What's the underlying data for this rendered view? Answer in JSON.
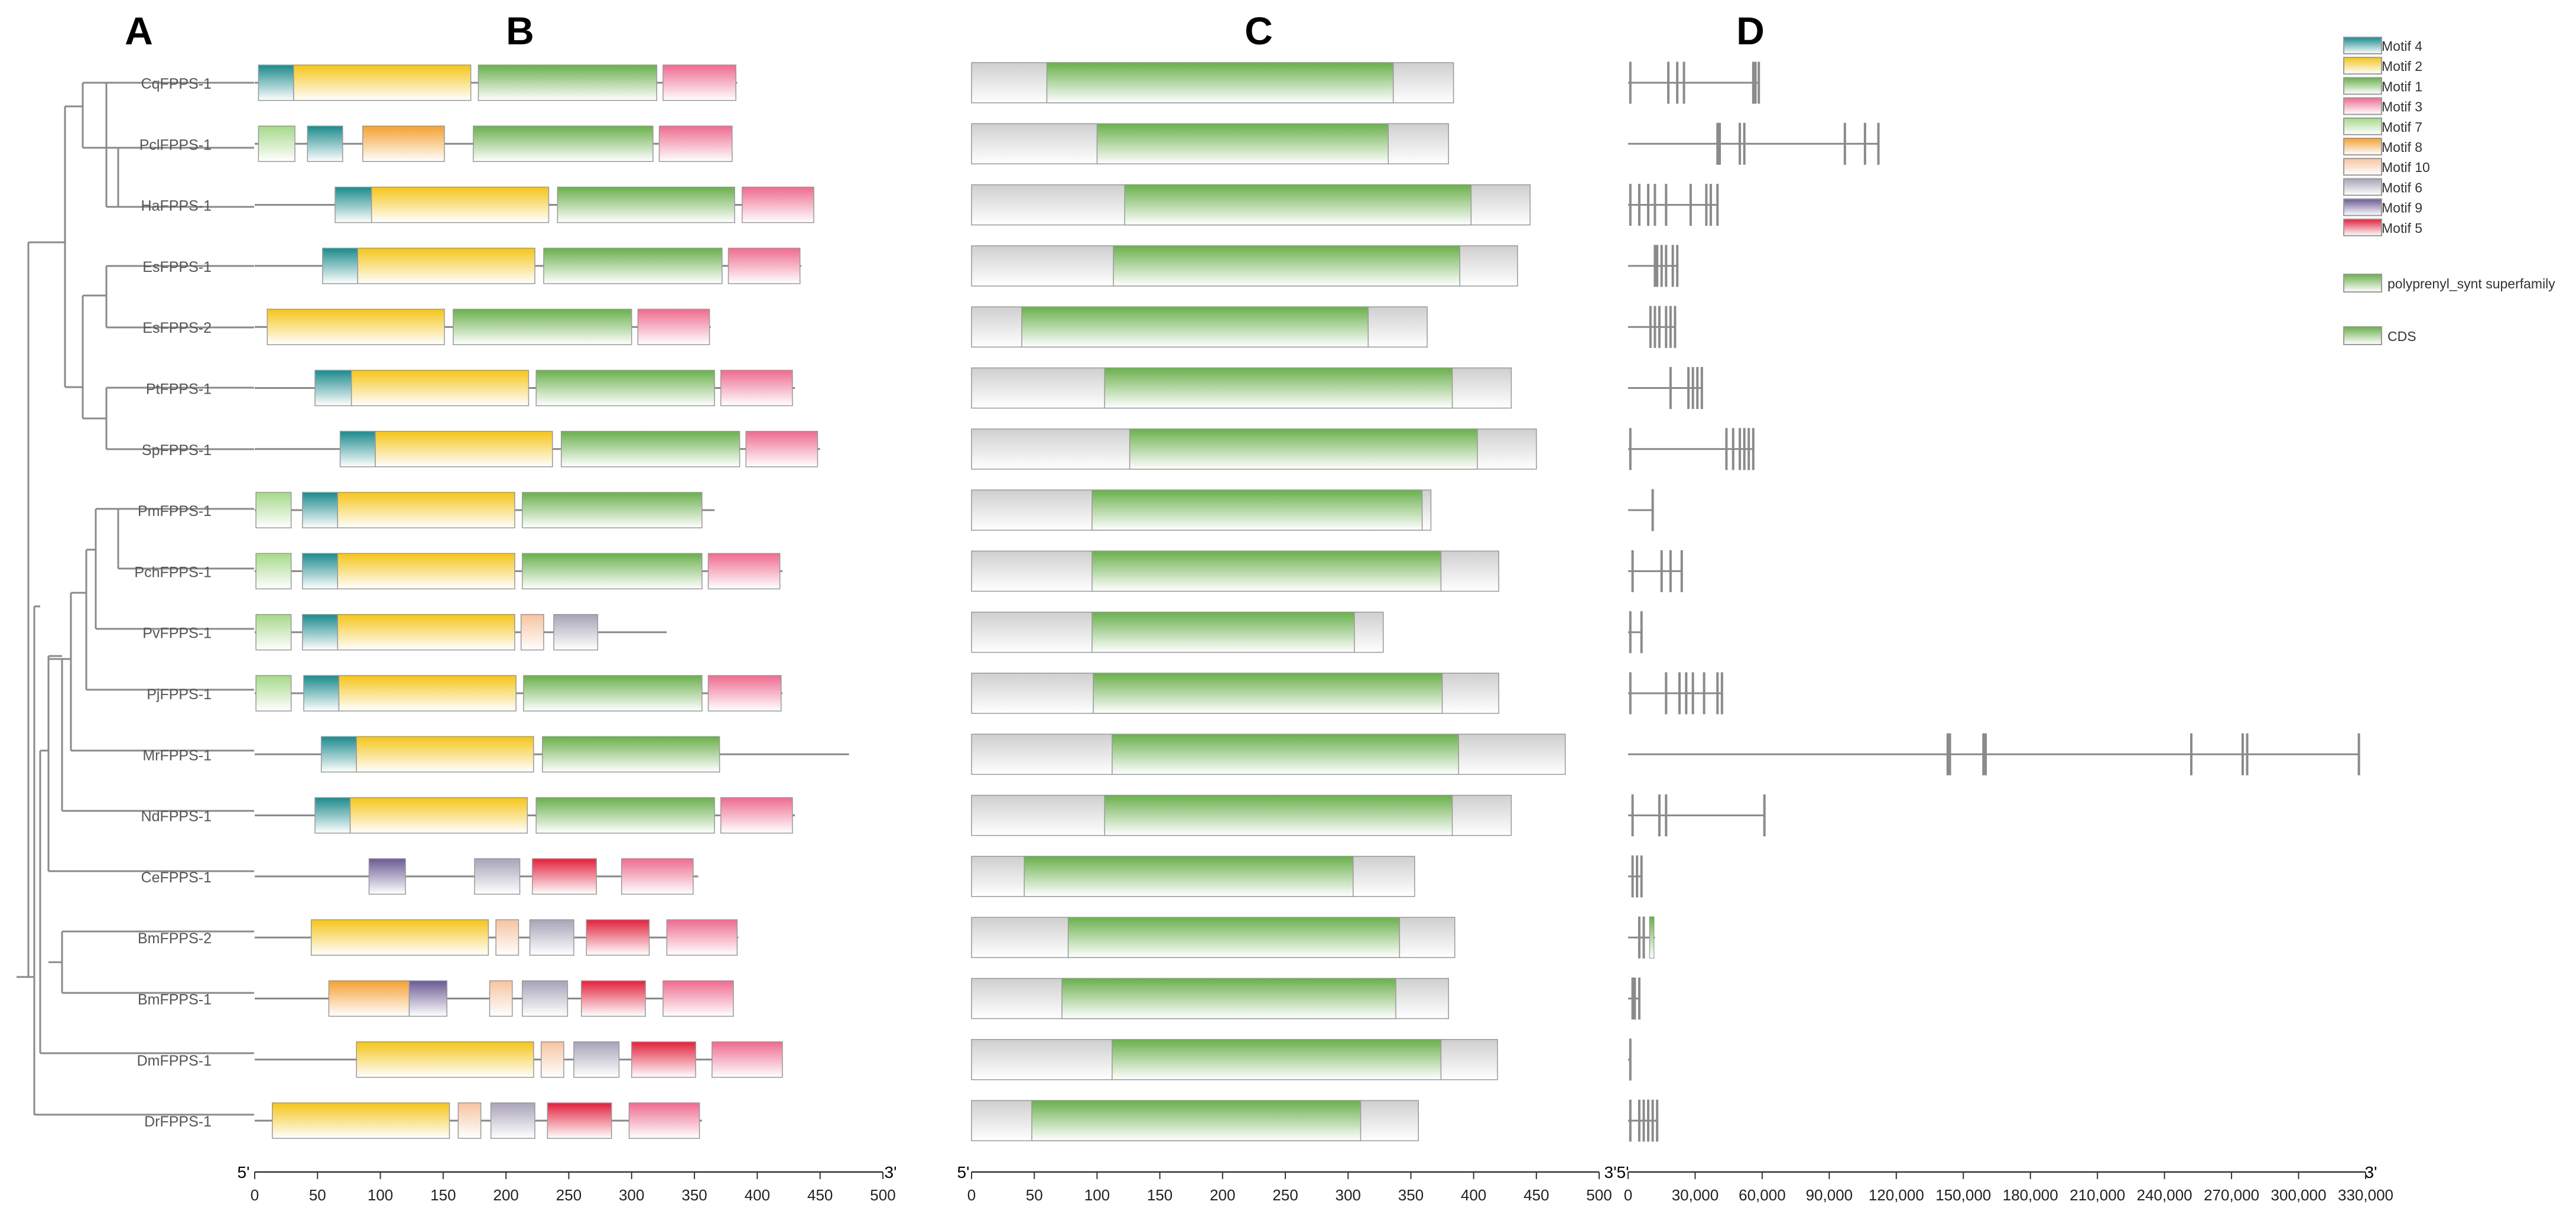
{
  "panels": {
    "A": "A",
    "B": "B",
    "C": "C",
    "D": "D"
  },
  "proteins": [
    {
      "name": "CqFPPS-1",
      "len": 384,
      "motifs": [
        [
          3,
          31,
          "m4"
        ],
        [
          31,
          172,
          "m2"
        ],
        [
          178,
          320,
          "m1"
        ],
        [
          325,
          383,
          "m3"
        ]
      ],
      "dom": [
        60,
        336
      ],
      "genes": [
        [
          0,
          58500
        ],
        [
          1000,
          1000
        ],
        [
          18000,
          18000
        ],
        [
          22000,
          22000
        ],
        [
          25000,
          25000
        ],
        [
          56000,
          56000
        ],
        [
          57000,
          57000
        ],
        [
          58500,
          58500
        ]
      ]
    },
    {
      "name": "PclFPPS-1",
      "len": 380,
      "motifs": [
        [
          3,
          32,
          "m7"
        ],
        [
          42,
          70,
          "m4"
        ],
        [
          86,
          151,
          "m8"
        ],
        [
          174,
          317,
          "m1"
        ],
        [
          322,
          380,
          "m3"
        ]
      ],
      "dom": [
        100,
        332
      ],
      "genes": [
        [
          0,
          112000
        ],
        [
          40000,
          40000
        ],
        [
          41000,
          41000
        ],
        [
          50000,
          50000
        ],
        [
          52000,
          52000
        ],
        [
          97000,
          97000
        ],
        [
          106000,
          106000
        ],
        [
          112000,
          112000
        ]
      ]
    },
    {
      "name": "HaFPPS-1",
      "len": 445,
      "motifs": [
        [
          64,
          93,
          "m4"
        ],
        [
          93,
          234,
          "m2"
        ],
        [
          241,
          382,
          "m1"
        ],
        [
          388,
          445,
          "m3"
        ]
      ],
      "dom": [
        122,
        398
      ],
      "genes": [
        [
          0,
          40000
        ],
        [
          1000,
          1000
        ],
        [
          5000,
          5000
        ],
        [
          9000,
          9000
        ],
        [
          12000,
          12000
        ],
        [
          17000,
          17000
        ],
        [
          28000,
          28000
        ],
        [
          35000,
          35000
        ],
        [
          37000,
          37000
        ],
        [
          40000,
          40000
        ]
      ]
    },
    {
      "name": "EsFPPS-1",
      "len": 435,
      "motifs": [
        [
          54,
          82,
          "m4"
        ],
        [
          82,
          223,
          "m2"
        ],
        [
          230,
          372,
          "m1"
        ],
        [
          377,
          434,
          "m3"
        ]
      ],
      "dom": [
        113,
        389
      ],
      "genes": [
        [
          0,
          22000
        ],
        [
          12000,
          12000
        ],
        [
          13000,
          13000
        ],
        [
          15000,
          15000
        ],
        [
          17000,
          17000
        ],
        [
          20000,
          20000
        ],
        [
          22000,
          22000
        ]
      ]
    },
    {
      "name": "EsFPPS-2",
      "len": 363,
      "motifs": [
        [
          10,
          151,
          "m2"
        ],
        [
          158,
          300,
          "m1"
        ],
        [
          305,
          362,
          "m3"
        ]
      ],
      "dom": [
        40,
        316
      ],
      "genes": [
        [
          0,
          21000
        ],
        [
          10000,
          10000
        ],
        [
          12000,
          12000
        ],
        [
          14000,
          14000
        ],
        [
          17000,
          17000
        ],
        [
          19000,
          19000
        ],
        [
          21000,
          21000
        ]
      ]
    },
    {
      "name": "PtFPPS-1",
      "len": 430,
      "motifs": [
        [
          48,
          77,
          "m4"
        ],
        [
          77,
          218,
          "m2"
        ],
        [
          224,
          366,
          "m1"
        ],
        [
          371,
          428,
          "m3"
        ]
      ],
      "dom": [
        106,
        383
      ],
      "genes": [
        [
          0,
          33000
        ],
        [
          19000,
          19000
        ],
        [
          27000,
          27000
        ],
        [
          29000,
          29000
        ],
        [
          31000,
          31000
        ],
        [
          33000,
          33000
        ]
      ]
    },
    {
      "name": "SpFPPS-1",
      "len": 450,
      "motifs": [
        [
          68,
          96,
          "m4"
        ],
        [
          96,
          237,
          "m2"
        ],
        [
          244,
          386,
          "m1"
        ],
        [
          391,
          448,
          "m3"
        ]
      ],
      "dom": [
        126,
        403
      ],
      "genes": [
        [
          0,
          56000
        ],
        [
          1000,
          1000
        ],
        [
          44000,
          44000
        ],
        [
          47000,
          47000
        ],
        [
          50000,
          50000
        ],
        [
          52000,
          52000
        ],
        [
          54000,
          54000
        ],
        [
          56000,
          56000
        ]
      ]
    },
    {
      "name": "PmFPPS-1",
      "len": 366,
      "motifs": [
        [
          1,
          29,
          "m7"
        ],
        [
          38,
          66,
          "m4"
        ],
        [
          66,
          207,
          "m2"
        ],
        [
          213,
          356,
          "m1"
        ]
      ],
      "dom": [
        96,
        359
      ],
      "genes": [
        [
          0,
          11000
        ],
        [
          11000,
          11000
        ]
      ]
    },
    {
      "name": "PchFPPS-1",
      "len": 420,
      "motifs": [
        [
          1,
          29,
          "m7"
        ],
        [
          38,
          66,
          "m4"
        ],
        [
          66,
          207,
          "m2"
        ],
        [
          213,
          356,
          "m1"
        ],
        [
          361,
          418,
          "m3"
        ]
      ],
      "dom": [
        96,
        374
      ],
      "genes": [
        [
          0,
          24000
        ],
        [
          2000,
          2000
        ],
        [
          15000,
          15000
        ],
        [
          19000,
          19000
        ],
        [
          24000,
          24000
        ]
      ]
    },
    {
      "name": "PvFPPS-1",
      "len": 328,
      "motifs": [
        [
          1,
          29,
          "m7"
        ],
        [
          38,
          66,
          "m4"
        ],
        [
          66,
          207,
          "m2"
        ],
        [
          212,
          230,
          "m10"
        ],
        [
          238,
          273,
          "m6"
        ]
      ],
      "dom": [
        96,
        305
      ],
      "genes": [
        [
          0,
          6000
        ],
        [
          1000,
          1000
        ],
        [
          6000,
          6000
        ]
      ]
    },
    {
      "name": "PjFPPS-1",
      "len": 420,
      "motifs": [
        [
          1,
          29,
          "m7"
        ],
        [
          39,
          67,
          "m4"
        ],
        [
          67,
          208,
          "m2"
        ],
        [
          214,
          356,
          "m1"
        ],
        [
          361,
          419,
          "m3"
        ]
      ],
      "dom": [
        97,
        375
      ],
      "genes": [
        [
          0,
          42000
        ],
        [
          1000,
          1000
        ],
        [
          17000,
          17000
        ],
        [
          23000,
          23000
        ],
        [
          26000,
          26000
        ],
        [
          29000,
          29000
        ],
        [
          34000,
          34000
        ],
        [
          40000,
          40000
        ],
        [
          42000,
          42000
        ]
      ]
    },
    {
      "name": "MrFPPS-1",
      "len": 473,
      "motifs": [
        [
          53,
          81,
          "m4"
        ],
        [
          81,
          222,
          "m2"
        ],
        [
          229,
          370,
          "m1"
        ]
      ],
      "dom": [
        112,
        388
      ],
      "genes": [
        [
          0,
          327000
        ],
        [
          143000,
          143000
        ],
        [
          144000,
          144000
        ],
        [
          159000,
          159000
        ],
        [
          160000,
          160000
        ],
        [
          252000,
          252000
        ],
        [
          275000,
          275000
        ],
        [
          277000,
          277000
        ],
        [
          327000,
          327000
        ]
      ]
    },
    {
      "name": "NdFPPS-1",
      "len": 430,
      "motifs": [
        [
          48,
          76,
          "m4"
        ],
        [
          76,
          217,
          "m2"
        ],
        [
          224,
          366,
          "m1"
        ],
        [
          371,
          428,
          "m3"
        ]
      ],
      "dom": [
        106,
        383
      ],
      "genes": [
        [
          0,
          61000
        ],
        [
          2000,
          2000
        ],
        [
          14000,
          14000
        ],
        [
          17000,
          17000
        ],
        [
          61000,
          61000
        ]
      ]
    },
    {
      "name": "CeFPPS-1",
      "len": 353,
      "motifs": [
        [
          91,
          120,
          "m9"
        ],
        [
          175,
          211,
          "m6"
        ],
        [
          221,
          272,
          "m5"
        ],
        [
          292,
          349,
          "m3"
        ]
      ],
      "dom": [
        42,
        304
      ],
      "genes": [
        [
          0,
          6000
        ],
        [
          2000,
          2000
        ],
        [
          4000,
          4000
        ],
        [
          6000,
          6000
        ]
      ]
    },
    {
      "name": "BmFPPS-2",
      "len": 385,
      "motifs": [
        [
          45,
          186,
          "m2"
        ],
        [
          192,
          210,
          "m10"
        ],
        [
          219,
          254,
          "m6"
        ],
        [
          264,
          314,
          "m5"
        ],
        [
          328,
          384,
          "m3"
        ]
      ],
      "dom": [
        77,
        341
      ],
      "genes": [
        [
          0,
          12000
        ],
        [
          5000,
          5000
        ],
        [
          7000,
          7000
        ],
        [
          10000,
          12000
        ]
      ]
    },
    {
      "name": "BmFPPS-1",
      "len": 380,
      "motifs": [
        [
          59,
          123,
          "m8"
        ],
        [
          123,
          153,
          "m9"
        ],
        [
          187,
          205,
          "m10"
        ],
        [
          213,
          249,
          "m6"
        ],
        [
          260,
          311,
          "m5"
        ],
        [
          325,
          381,
          "m3"
        ]
      ],
      "dom": [
        72,
        338
      ],
      "genes": [
        [
          0,
          5000
        ],
        [
          2000,
          2000
        ],
        [
          3000,
          3000
        ],
        [
          5000,
          5000
        ]
      ]
    },
    {
      "name": "DmFPPS-1",
      "len": 419,
      "motifs": [
        [
          81,
          222,
          "m2"
        ],
        [
          228,
          246,
          "m10"
        ],
        [
          254,
          290,
          "m6"
        ],
        [
          300,
          351,
          "m5"
        ],
        [
          364,
          420,
          "m3"
        ]
      ],
      "dom": [
        112,
        374
      ],
      "genes": [
        [
          0,
          1000
        ],
        [
          1000,
          1000
        ]
      ]
    },
    {
      "name": "DrFPPS-1",
      "len": 356,
      "motifs": [
        [
          14,
          155,
          "m2"
        ],
        [
          162,
          180,
          "m10"
        ],
        [
          188,
          223,
          "m6"
        ],
        [
          233,
          284,
          "m5"
        ],
        [
          298,
          354,
          "m3"
        ]
      ],
      "dom": [
        48,
        310
      ],
      "genes": [
        [
          0,
          13000
        ],
        [
          1000,
          1000
        ],
        [
          5000,
          5000
        ],
        [
          7000,
          7000
        ],
        [
          9000,
          9000
        ],
        [
          11000,
          11000
        ],
        [
          13000,
          13000
        ]
      ]
    }
  ],
  "legend_motifs": [
    {
      "key": "m4",
      "label": "Motif 4",
      "color": "#1b8a8c"
    },
    {
      "key": "m2",
      "label": "Motif 2",
      "color": "#f5c518"
    },
    {
      "key": "m1",
      "label": "Motif 1",
      "color": "#6ab04c"
    },
    {
      "key": "m3",
      "label": "Motif 3",
      "color": "#ef6b8f"
    },
    {
      "key": "m7",
      "label": "Motif 7",
      "color": "#a6d98a"
    },
    {
      "key": "m8",
      "label": "Motif 8",
      "color": "#f5a030"
    },
    {
      "key": "m10",
      "label": "Motif 10",
      "color": "#f7c4a0"
    },
    {
      "key": "m6",
      "label": "Motif 6",
      "color": "#a8a3b8"
    },
    {
      "key": "m9",
      "label": "Motif 9",
      "color": "#6a5a94"
    },
    {
      "key": "m5",
      "label": "Motif 5",
      "color": "#e3203c"
    }
  ],
  "legend_domain": {
    "label": "polyprenyl_synt superfamily",
    "color": "#6ab04c"
  },
  "legend_cds": {
    "label": "CDS",
    "color": "#6ab04c"
  },
  "axis_protein": {
    "start_label": "5'",
    "end_label": "3'",
    "ticks": [
      0,
      50,
      100,
      150,
      200,
      250,
      300,
      350,
      400,
      450,
      500
    ],
    "max": 500
  },
  "axis_gene": {
    "start_label": "5'",
    "end_label": "3'",
    "tick_labels": [
      "0",
      "30,000",
      "60,000",
      "90,000",
      "120,000",
      "150,000",
      "180,000",
      "210,000",
      "240,000",
      "270,000",
      "300,000",
      "330,000"
    ],
    "ticks": [
      0,
      30000,
      60000,
      90000,
      120000,
      150000,
      180000,
      210000,
      240000,
      270000,
      300000,
      330000
    ],
    "max": 330000
  }
}
